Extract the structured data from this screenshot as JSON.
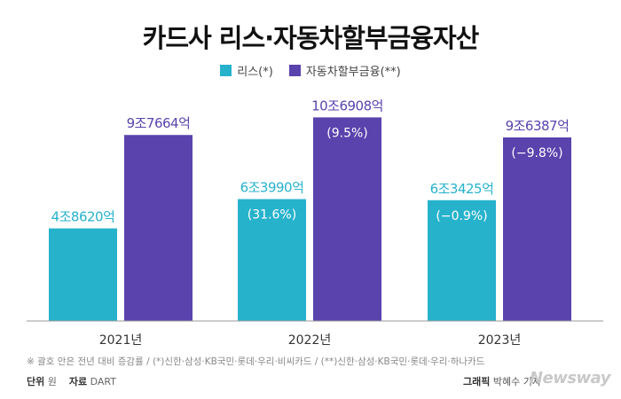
{
  "title": "카드사 리스·자동차할부금융자산",
  "legend": [
    {
      "label": "리스(*)",
      "color": "#27b2cc"
    },
    {
      "label": "자동차할부금융(**)",
      "color": "#5a43ad"
    }
  ],
  "footnote": "※ 괄호 안은 전년 대비 증감률 / (*)신한·삼성·KB국민·롯데·우리·비씨카드 / (**)신한·삼성·KB국민·롯데·우리·하나카드",
  "unit": {
    "label": "단위",
    "value": "원"
  },
  "source": {
    "label": "자료",
    "value": "DART"
  },
  "credit": {
    "label": "그래픽",
    "value": "박혜수 기자"
  },
  "logo": "Newsway",
  "chart_data": {
    "type": "bar",
    "title": "카드사 리스·자동차할부금융자산",
    "categories": [
      "2021년",
      "2022년",
      "2023년"
    ],
    "series": [
      {
        "name": "리스(*)",
        "color": "#27b2cc",
        "values": [
          48620,
          63990,
          63425
        ],
        "labels": [
          "4조8620억",
          "6조3990억",
          "6조3425억"
        ],
        "changes": [
          "",
          "(31.6%)",
          "(−0.9%)"
        ]
      },
      {
        "name": "자동차할부금융(**)",
        "color": "#5a43ad",
        "values": [
          97664,
          106908,
          96387
        ],
        "labels": [
          "9조7664억",
          "10조6908억",
          "9조6387억"
        ],
        "changes": [
          "",
          "(9.5%)",
          "(−9.8%)"
        ]
      }
    ],
    "ylim": [
      0,
      115000
    ],
    "grid": false,
    "legend_position": "top-center"
  }
}
